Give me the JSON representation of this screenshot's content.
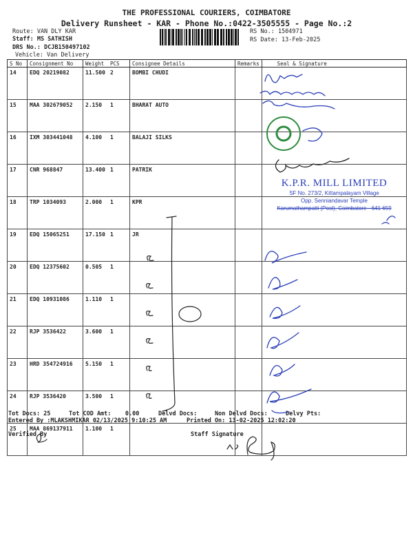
{
  "header": {
    "company": "THE PROFESSIONAL COURIERS, COIMBATORE",
    "subtitle": "Delivery Runsheet - KAR - Phone No.:0422-3505555 - Page No.:2",
    "route": "Route: VAN DLY KAR",
    "staff": "Staff: MS SATHISH",
    "drs_no": "DRS No.: DCJB150497102",
    "vehicle": "Vehicle: Van Delivery",
    "rs_no": "RS No.: 1504971",
    "rs_date": "RS Date: 13-Feb-2025"
  },
  "table": {
    "columns": [
      "S No",
      "Consignment No",
      "Weight",
      "PCS",
      "Consignee Details",
      "Remarks",
      "Seal & Signature"
    ],
    "rows": [
      {
        "sno": "14",
        "consignment": "EDQ 20219082",
        "weight": "11.500",
        "pcs": "2",
        "consignee": "BOMBI CHUDI"
      },
      {
        "sno": "15",
        "consignment": "MAA 302679052",
        "weight": "2.150",
        "pcs": "1",
        "consignee": "BHARAT AUTO"
      },
      {
        "sno": "16",
        "consignment": "IXM 303441048",
        "weight": "4.100",
        "pcs": "1",
        "consignee": "BALAJI SILKS"
      },
      {
        "sno": "17",
        "consignment": "CNR 968847",
        "weight": "13.400",
        "pcs": "1",
        "consignee": "PATRIK"
      },
      {
        "sno": "18",
        "consignment": "TRP 1034093",
        "weight": "2.000",
        "pcs": "1",
        "consignee": "KPR"
      },
      {
        "sno": "19",
        "consignment": "EDQ 15065251",
        "weight": "17.150",
        "pcs": "1",
        "consignee": "JR"
      },
      {
        "sno": "20",
        "consignment": "EDQ 12375602",
        "weight": "0.505",
        "pcs": "1",
        "consignee": ""
      },
      {
        "sno": "21",
        "consignment": "EDQ 10931086",
        "weight": "1.110",
        "pcs": "1",
        "consignee": ""
      },
      {
        "sno": "22",
        "consignment": "RJP 3536422",
        "weight": "3.600",
        "pcs": "1",
        "consignee": ""
      },
      {
        "sno": "23",
        "consignment": "HRD 354724916",
        "weight": "5.150",
        "pcs": "1",
        "consignee": ""
      },
      {
        "sno": "24",
        "consignment": "RJP 3536420",
        "weight": "3.500",
        "pcs": "1",
        "consignee": ""
      },
      {
        "sno": "25",
        "consignment": "MAA 869137911",
        "weight": "1.100",
        "pcs": "1",
        "consignee": ""
      }
    ]
  },
  "stamp": {
    "name": "K.P.R. MILL LIMITED",
    "line1": "SF No. 273/2, Kittampalayam Village",
    "line2": "Opp. Senniandavar Temple",
    "line3": "Karumathampatti (Post), Coimbatore - 641 659"
  },
  "footer": {
    "tot_docs": "Tot Docs:  25",
    "tot_cod": "Tot COD Amt:    0.00",
    "delvd_docs": "Delvd Docs:",
    "non_delvd_docs": "Non Delvd Docs:",
    "delvy_pts": "Delvy Pts:",
    "entered_by": "Entered By :MLAKSHMIKAR 02/13/2025 9:10:25 AM",
    "printed_on": "Printed On: 13-02-2025 12:02:20",
    "verified_by": "Verified By",
    "staff_signature": "Staff Signature"
  },
  "colors": {
    "ink": "#2b3fb8",
    "stamp_green": "#2e8b3e",
    "text": "#222222"
  }
}
